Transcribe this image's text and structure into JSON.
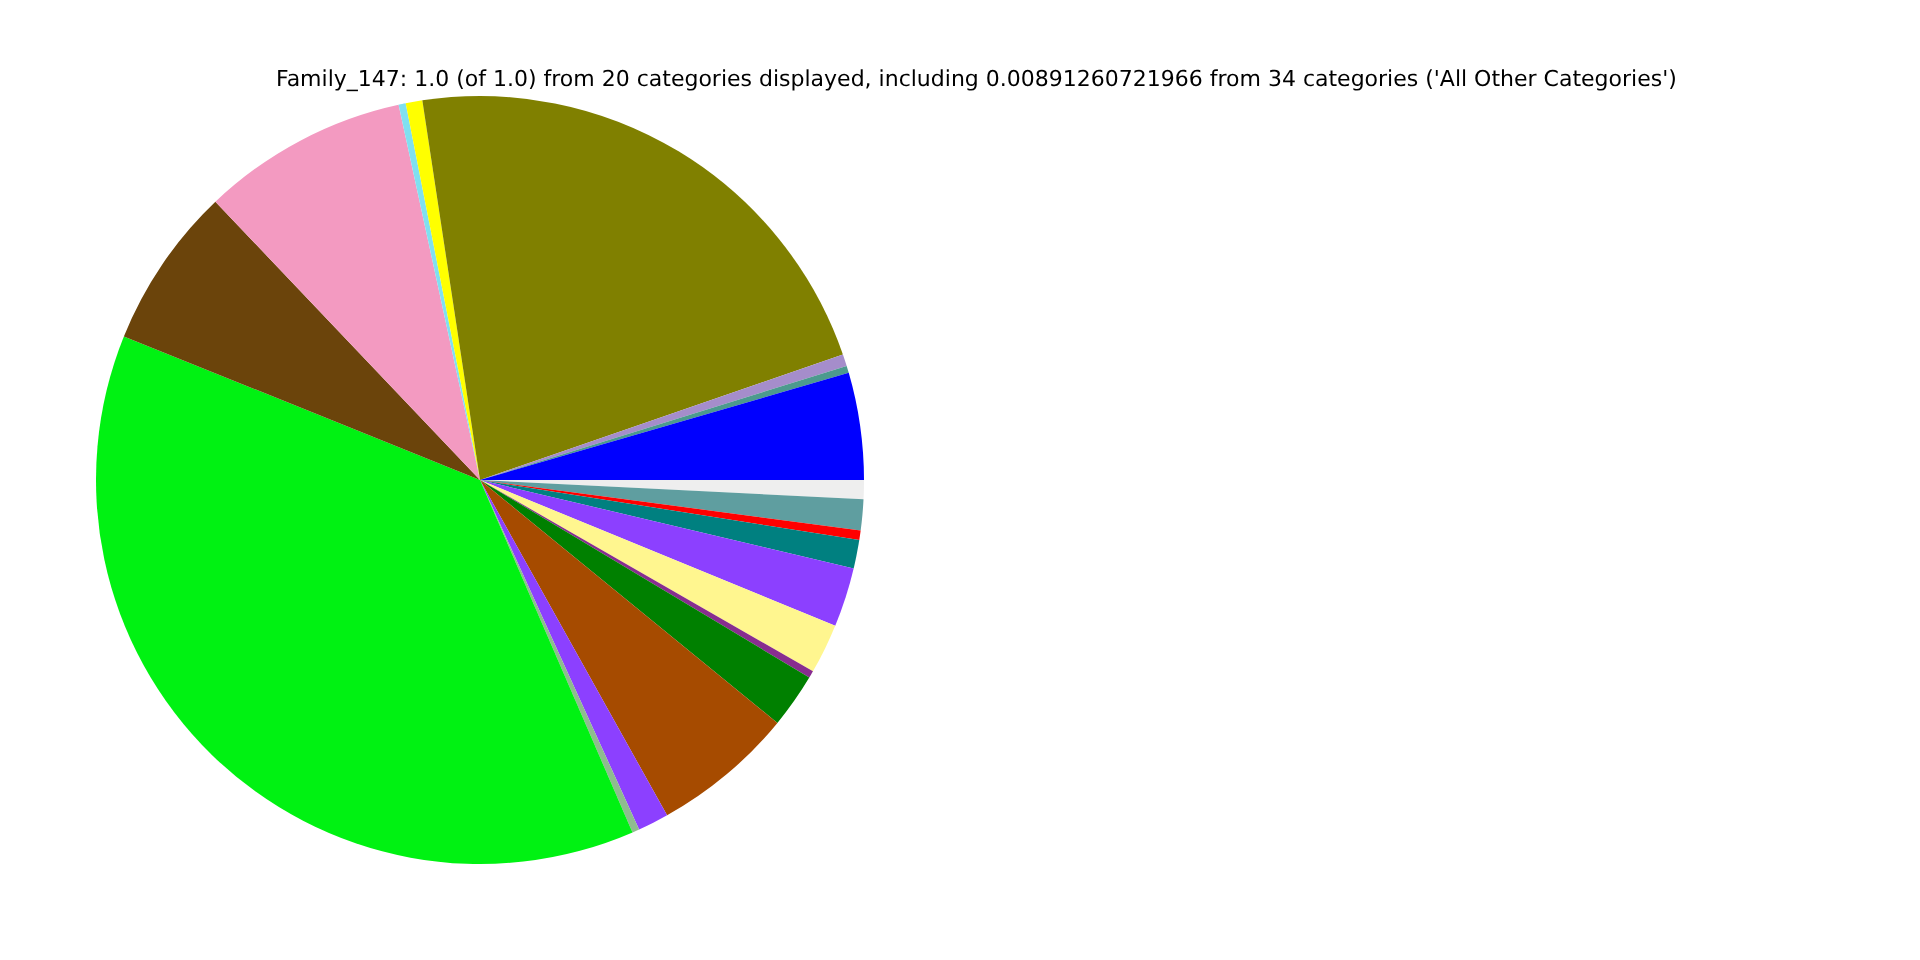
{
  "chart_data": {
    "type": "pie",
    "title": "Family_147: 1.0 (of 1.0) from 20 categories displayed, including 0.00891260721966 from 34 categories ('All Other Categories')",
    "categories": [
      null,
      null,
      null,
      null,
      null,
      null,
      null,
      null,
      null,
      null,
      null,
      null,
      null,
      null,
      null,
      null,
      null,
      null,
      null,
      null
    ],
    "values": [
      0.8,
      1.3,
      0.4,
      1.2,
      2.5,
      2.1,
      0.3,
      2.3,
      6.0,
      1.3,
      0.3,
      37.6,
      6.8,
      8.7,
      0.3,
      0.7,
      22.1,
      0.5,
      0.3,
      4.5
    ],
    "colors": [
      "#eeeeee",
      "#5f9ea0",
      "#ff0000",
      "#008080",
      "#8c40ff",
      "#fff68f",
      "#882d8f",
      "#008000",
      "#a64b00",
      "#8c40ff",
      "#8fbc8f",
      "#00f212",
      "#6b440b",
      "#f39ac1",
      "#80e0f0",
      "#ffff00",
      "#808000",
      "#a58dcb",
      "#4c9a8e",
      "#0000ff"
    ]
  }
}
